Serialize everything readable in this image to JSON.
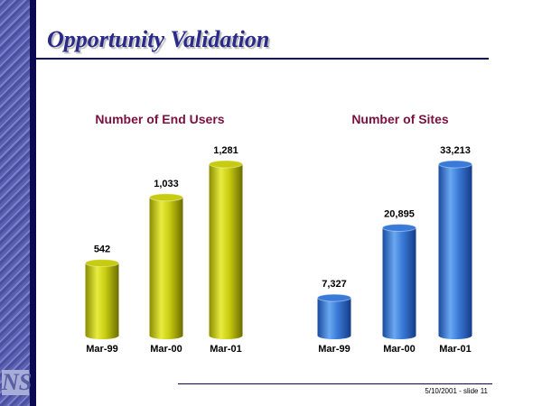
{
  "slide": {
    "title": "Opportunity Validation",
    "footer": "5/10/2001 - slide 11",
    "logo": "NS"
  },
  "chart_data": [
    {
      "type": "bar",
      "title": "Number of End Users",
      "categories": [
        "Mar-99",
        "Mar-00",
        "Mar-01"
      ],
      "values": [
        542,
        1033,
        1281
      ],
      "data_labels": [
        "542",
        "1,033",
        "1,281"
      ],
      "color": "#c8cc10",
      "ylim": [
        0,
        1281
      ]
    },
    {
      "type": "bar",
      "title": "Number of Sites",
      "categories": [
        "Mar-99",
        "Mar-00",
        "Mar-01"
      ],
      "values": [
        7327,
        20895,
        33213
      ],
      "data_labels": [
        "7,327",
        "20,895",
        "33,213"
      ],
      "color": "#3a7ad8",
      "ylim": [
        0,
        33213
      ]
    }
  ]
}
